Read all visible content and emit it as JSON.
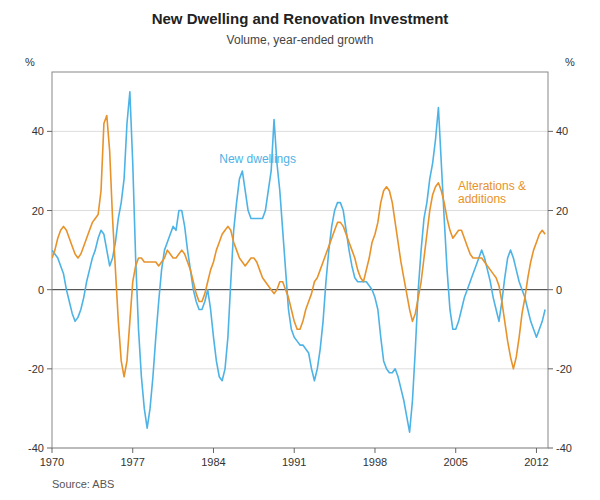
{
  "chart_data": {
    "type": "line",
    "title": "New Dwelling and Renovation Investment",
    "subtitle": "Volume, year-ended growth",
    "y_label": "%",
    "y2_label": "%",
    "source": "Source: ABS",
    "xlim": [
      1970,
      2013
    ],
    "ylim": [
      -40,
      55
    ],
    "yticks": [
      -40,
      -20,
      0,
      20,
      40
    ],
    "y2lim": [
      -40,
      55
    ],
    "y2ticks": [
      -40,
      -20,
      0,
      20,
      40
    ],
    "xticks": [
      1970,
      1977,
      1984,
      1991,
      1998,
      2005,
      2012
    ],
    "grid": true,
    "x": [
      1970.0,
      1970.25,
      1970.5,
      1970.75,
      1971.0,
      1971.25,
      1971.5,
      1971.75,
      1972.0,
      1972.25,
      1972.5,
      1972.75,
      1973.0,
      1973.25,
      1973.5,
      1973.75,
      1974.0,
      1974.25,
      1974.5,
      1974.75,
      1975.0,
      1975.25,
      1975.5,
      1975.75,
      1976.0,
      1976.25,
      1976.5,
      1976.75,
      1977.0,
      1977.25,
      1977.5,
      1977.75,
      1978.0,
      1978.25,
      1978.5,
      1978.75,
      1979.0,
      1979.25,
      1979.5,
      1979.75,
      1980.0,
      1980.25,
      1980.5,
      1980.75,
      1981.0,
      1981.25,
      1981.5,
      1981.75,
      1982.0,
      1982.25,
      1982.5,
      1982.75,
      1983.0,
      1983.25,
      1983.5,
      1983.75,
      1984.0,
      1984.25,
      1984.5,
      1984.75,
      1985.0,
      1985.25,
      1985.5,
      1985.75,
      1986.0,
      1986.25,
      1986.5,
      1986.75,
      1987.0,
      1987.25,
      1987.5,
      1987.75,
      1988.0,
      1988.25,
      1988.5,
      1988.75,
      1989.0,
      1989.25,
      1989.5,
      1989.75,
      1990.0,
      1990.25,
      1990.5,
      1990.75,
      1991.0,
      1991.25,
      1991.5,
      1991.75,
      1992.0,
      1992.25,
      1992.5,
      1992.75,
      1993.0,
      1993.25,
      1993.5,
      1993.75,
      1994.0,
      1994.25,
      1994.5,
      1994.75,
      1995.0,
      1995.25,
      1995.5,
      1995.75,
      1996.0,
      1996.25,
      1996.5,
      1996.75,
      1997.0,
      1997.25,
      1997.5,
      1997.75,
      1998.0,
      1998.25,
      1998.5,
      1998.75,
      1999.0,
      1999.25,
      1999.5,
      1999.75,
      2000.0,
      2000.25,
      2000.5,
      2000.75,
      2001.0,
      2001.25,
      2001.5,
      2001.75,
      2002.0,
      2002.25,
      2002.5,
      2002.75,
      2003.0,
      2003.25,
      2003.5,
      2003.75,
      2004.0,
      2004.25,
      2004.5,
      2004.75,
      2005.0,
      2005.25,
      2005.5,
      2005.75,
      2006.0,
      2006.25,
      2006.5,
      2006.75,
      2007.0,
      2007.25,
      2007.5,
      2007.75,
      2008.0,
      2008.25,
      2008.5,
      2008.75,
      2009.0,
      2009.25,
      2009.5,
      2009.75,
      2010.0,
      2010.25,
      2010.5,
      2010.75,
      2011.0,
      2011.25,
      2011.5,
      2011.75,
      2012.0,
      2012.25,
      2012.5,
      2012.75
    ],
    "series": [
      {
        "color": "#4db3e6",
        "values": [
          10.0,
          9.0,
          8.0,
          6.0,
          4.0,
          0.0,
          -3.0,
          -6.0,
          -8.0,
          -7.0,
          -5.0,
          -2.0,
          2.0,
          5.0,
          8.0,
          10.0,
          13.0,
          15.0,
          14.0,
          10.0,
          6.0,
          8.0,
          12.0,
          18.0,
          22.0,
          28.0,
          42.0,
          50.0,
          32.0,
          8.0,
          -10.0,
          -22.0,
          -30.0,
          -35.0,
          -30.0,
          -22.0,
          -12.0,
          -3.0,
          5.0,
          10.0,
          12.0,
          14.0,
          16.0,
          15.0,
          20.0,
          20.0,
          16.0,
          10.0,
          5.0,
          0.0,
          -3.0,
          -5.0,
          -5.0,
          -3.0,
          0.0,
          -5.0,
          -12.0,
          -18.0,
          -22.0,
          -23.0,
          -20.0,
          -12.0,
          2.0,
          15.0,
          22.0,
          28.0,
          30.0,
          25.0,
          20.0,
          18.0,
          18.0,
          18.0,
          18.0,
          18.0,
          20.0,
          25.0,
          30.0,
          43.0,
          32.0,
          25.0,
          15.0,
          5.0,
          -5.0,
          -10.0,
          -12.0,
          -13.0,
          -14.0,
          -14.0,
          -15.0,
          -16.0,
          -20.0,
          -23.0,
          -20.0,
          -15.0,
          -8.0,
          2.0,
          10.0,
          16.0,
          20.0,
          22.0,
          22.0,
          20.0,
          15.0,
          10.0,
          6.0,
          3.0,
          2.0,
          2.0,
          2.0,
          2.0,
          1.0,
          0.0,
          -2.0,
          -5.0,
          -12.0,
          -18.0,
          -20.0,
          -21.0,
          -21.0,
          -20.0,
          -22.0,
          -25.0,
          -28.0,
          -32.0,
          -36.0,
          -28.0,
          -15.0,
          0.0,
          10.0,
          18.0,
          22.0,
          28.0,
          32.0,
          38.0,
          46.0,
          32.0,
          18.0,
          5.0,
          -5.0,
          -10.0,
          -10.0,
          -8.0,
          -5.0,
          -2.0,
          0.0,
          2.0,
          4.0,
          6.0,
          8.0,
          10.0,
          8.0,
          5.0,
          2.0,
          -2.0,
          -5.0,
          -8.0,
          -3.0,
          3.0,
          8.0,
          10.0,
          8.0,
          5.0,
          2.0,
          0.0,
          -2.0,
          -5.0,
          -8.0,
          -10.0,
          -12.0,
          -10.0,
          -8.0,
          -5.0
        ]
      },
      {
        "color": "#e8922a",
        "values": [
          8.0,
          10.0,
          13.0,
          15.0,
          16.0,
          15.0,
          13.0,
          11.0,
          9.0,
          8.0,
          9.0,
          11.0,
          13.0,
          15.0,
          17.0,
          18.0,
          19.0,
          25.0,
          42.0,
          44.0,
          35.0,
          18.0,
          5.0,
          -8.0,
          -18.0,
          -22.0,
          -18.0,
          -8.0,
          2.0,
          6.0,
          8.0,
          8.0,
          7.0,
          7.0,
          7.0,
          7.0,
          7.0,
          6.0,
          7.0,
          8.0,
          10.0,
          9.0,
          8.0,
          8.0,
          9.0,
          10.0,
          9.0,
          7.0,
          5.0,
          2.0,
          -1.0,
          -3.0,
          -3.0,
          -1.0,
          2.0,
          5.0,
          7.0,
          10.0,
          12.0,
          14.0,
          15.0,
          16.0,
          15.0,
          12.0,
          10.0,
          8.0,
          7.0,
          6.0,
          7.0,
          8.0,
          8.0,
          7.0,
          5.0,
          3.0,
          2.0,
          1.0,
          0.0,
          -1.0,
          0.0,
          2.0,
          2.0,
          0.0,
          -2.0,
          -5.0,
          -8.0,
          -10.0,
          -10.0,
          -8.0,
          -5.0,
          -3.0,
          -1.0,
          2.0,
          3.0,
          5.0,
          7.0,
          9.0,
          11.0,
          13.0,
          15.0,
          17.0,
          17.0,
          16.0,
          14.0,
          12.0,
          10.0,
          8.0,
          5.0,
          3.0,
          2.0,
          5.0,
          8.0,
          12.0,
          14.0,
          17.0,
          22.0,
          25.0,
          26.0,
          25.0,
          22.0,
          17.0,
          12.0,
          7.0,
          3.0,
          -1.0,
          -5.0,
          -8.0,
          -6.0,
          -2.0,
          2.0,
          8.0,
          14.0,
          20.0,
          24.0,
          26.0,
          27.0,
          25.0,
          22.0,
          18.0,
          15.0,
          13.0,
          14.0,
          15.0,
          15.0,
          13.0,
          11.0,
          9.0,
          8.0,
          8.0,
          8.0,
          8.0,
          7.0,
          6.0,
          5.0,
          4.0,
          3.0,
          1.0,
          -3.0,
          -8.0,
          -13.0,
          -17.0,
          -20.0,
          -17.0,
          -12.0,
          -6.0,
          -2.0,
          3.0,
          7.0,
          10.0,
          12.0,
          14.0,
          15.0,
          14.0
        ]
      }
    ],
    "annotations": [
      {
        "text": "New dwellings",
        "x": 1984.5,
        "y": 32.0,
        "color": "#4db3e6"
      },
      {
        "text": "Alterations &\nadditions",
        "x": 2005.2,
        "y": 22.0,
        "color": "#e8922a"
      }
    ]
  }
}
